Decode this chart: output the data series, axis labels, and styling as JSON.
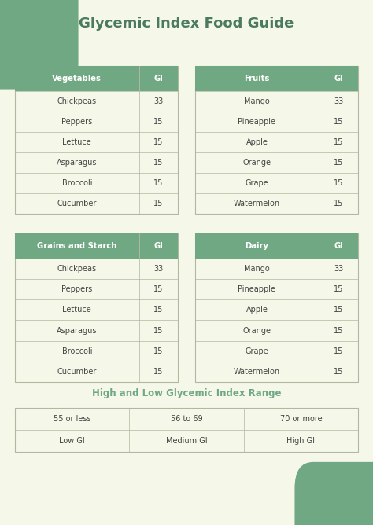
{
  "title": "Glycemic Index Food Guide",
  "title_color": "#4a7a60",
  "bg_color": "#f5f7e8",
  "header_color": "#6fa882",
  "header_text_color": "#ffffff",
  "row_text_color": "#444444",
  "border_color": "#b0b8a0",
  "tables": [
    {
      "title": "Vegetables",
      "col2": "GI",
      "rows": [
        [
          "Chickpeas",
          "33"
        ],
        [
          "Peppers",
          "15"
        ],
        [
          "Lettuce",
          "15"
        ],
        [
          "Asparagus",
          "15"
        ],
        [
          "Broccoli",
          "15"
        ],
        [
          "Cucumber",
          "15"
        ]
      ]
    },
    {
      "title": "Fruits",
      "col2": "GI",
      "rows": [
        [
          "Mango",
          "33"
        ],
        [
          "Pineapple",
          "15"
        ],
        [
          "Apple",
          "15"
        ],
        [
          "Orange",
          "15"
        ],
        [
          "Grape",
          "15"
        ],
        [
          "Watermelon",
          "15"
        ]
      ]
    },
    {
      "title": "Grains and Starch",
      "col2": "GI",
      "rows": [
        [
          "Chickpeas",
          "33"
        ],
        [
          "Peppers",
          "15"
        ],
        [
          "Lettuce",
          "15"
        ],
        [
          "Asparagus",
          "15"
        ],
        [
          "Broccoli",
          "15"
        ],
        [
          "Cucumber",
          "15"
        ]
      ]
    },
    {
      "title": "Dairy",
      "col2": "GI",
      "rows": [
        [
          "Mango",
          "33"
        ],
        [
          "Pineapple",
          "15"
        ],
        [
          "Apple",
          "15"
        ],
        [
          "Orange",
          "15"
        ],
        [
          "Grape",
          "15"
        ],
        [
          "Watermelon",
          "15"
        ]
      ]
    }
  ],
  "range_title": "High and Low Glycemic Index Range",
  "range_title_color": "#6fa882",
  "range_rows": [
    [
      "55 or less",
      "56 to 69",
      "70 or more"
    ],
    [
      "Low GI",
      "Medium GI",
      "High GI"
    ]
  ],
  "blob_color": "#6fa882",
  "blob_tl": [
    -0.09,
    0.88,
    0.25,
    0.16
  ],
  "blob_br": [
    0.84,
    -0.05,
    0.25,
    0.12
  ]
}
